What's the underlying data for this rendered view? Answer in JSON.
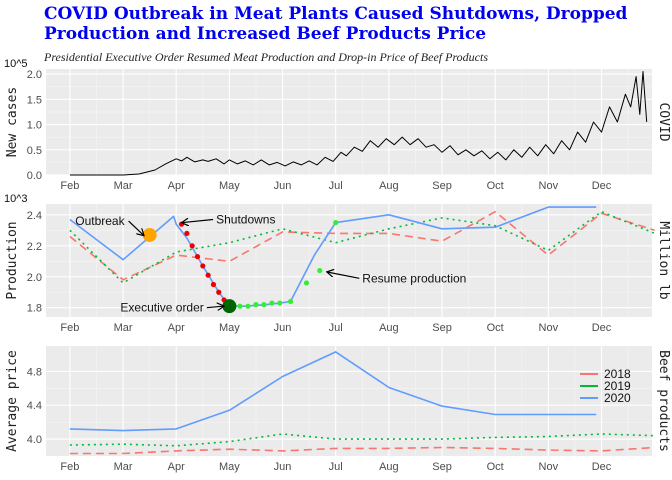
{
  "title": "COVID Outbreak in Meat Plants Caused Shutdowns, Dropped Production and Increased Beef Products Price",
  "subtitle": "Presidential Executive Order Resumed Meat Production and Drop-in Price of Beef Products",
  "chart_data": [
    {
      "type": "line",
      "ylabel": "New cases",
      "right_label": "COVID",
      "y_scale_label": "10^5",
      "ylim": [
        0,
        2.1
      ],
      "yticks": [
        0,
        0.5,
        1.0,
        1.5,
        2.0
      ],
      "ytick_labels": [
        "0.0",
        "0.5",
        "1.0",
        "1.5",
        "2.0"
      ],
      "xlim": [
        0.55,
        11.95
      ],
      "xticks": [
        1,
        2,
        3,
        4,
        5,
        6,
        7,
        8,
        9,
        10,
        11,
        12
      ],
      "xtick_labels": [
        "Feb",
        "Mar",
        "Apr",
        "May",
        "Jun",
        "Jul",
        "Aug",
        "Sep",
        "Oct",
        "Nov",
        "Dec"
      ],
      "grid": true,
      "series": [
        {
          "color": "#000000",
          "x": [
            1.0,
            1.5,
            2.0,
            2.3,
            2.6,
            2.8,
            3.0,
            3.1,
            3.2,
            3.35,
            3.5,
            3.6,
            3.75,
            3.9,
            4.0,
            4.15,
            4.3,
            4.45,
            4.6,
            4.75,
            4.9,
            5.05,
            5.2,
            5.35,
            5.5,
            5.65,
            5.8,
            5.95,
            6.1,
            6.2,
            6.35,
            6.5,
            6.65,
            6.8,
            6.95,
            7.1,
            7.25,
            7.4,
            7.55,
            7.7,
            7.85,
            8.0,
            8.15,
            8.3,
            8.45,
            8.6,
            8.75,
            8.9,
            9.05,
            9.2,
            9.35,
            9.5,
            9.65,
            9.8,
            9.95,
            10.1,
            10.25,
            10.4,
            10.55,
            10.7,
            10.85,
            11.0,
            11.15,
            11.3,
            11.45,
            11.55,
            11.65,
            11.72,
            11.78,
            11.85
          ],
          "y": [
            0.0,
            0.0,
            0.0,
            0.02,
            0.1,
            0.22,
            0.32,
            0.28,
            0.35,
            0.26,
            0.3,
            0.27,
            0.32,
            0.22,
            0.3,
            0.22,
            0.28,
            0.2,
            0.3,
            0.2,
            0.25,
            0.18,
            0.26,
            0.2,
            0.28,
            0.2,
            0.35,
            0.27,
            0.45,
            0.38,
            0.55,
            0.47,
            0.68,
            0.55,
            0.72,
            0.6,
            0.75,
            0.6,
            0.72,
            0.55,
            0.6,
            0.45,
            0.58,
            0.4,
            0.5,
            0.38,
            0.48,
            0.32,
            0.45,
            0.3,
            0.5,
            0.35,
            0.55,
            0.38,
            0.6,
            0.42,
            0.68,
            0.5,
            0.85,
            0.65,
            1.05,
            0.85,
            1.35,
            1.05,
            1.6,
            1.35,
            1.95,
            1.2,
            2.05,
            1.05
          ]
        }
      ]
    },
    {
      "type": "line",
      "ylabel": "Production",
      "right_label": "Million lb",
      "y_scale_label": "10^3",
      "ylim": [
        1.74,
        2.47
      ],
      "yticks": [
        1.8,
        2.0,
        2.2,
        2.4
      ],
      "ytick_labels": [
        "1.8",
        "2.0",
        "2.2",
        "2.4"
      ],
      "xlim": [
        0.55,
        11.95
      ],
      "xticks": [
        1,
        2,
        3,
        4,
        5,
        6,
        7,
        8,
        9,
        10,
        11,
        12
      ],
      "xtick_labels": [
        "Feb",
        "Mar",
        "Apr",
        "May",
        "Jun",
        "Jul",
        "Aug",
        "Sep",
        "Oct",
        "Nov",
        "Dec"
      ],
      "grid": true,
      "series": [
        {
          "name": "2018",
          "color": "#f8766d",
          "dash": "8,5",
          "x": [
            1,
            2,
            3,
            4,
            5,
            6,
            7,
            8,
            9,
            10,
            11,
            12
          ],
          "y": [
            2.26,
            1.98,
            2.14,
            2.1,
            2.29,
            2.28,
            2.28,
            2.23,
            2.42,
            2.14,
            2.41,
            2.3
          ]
        },
        {
          "name": "2019",
          "color": "#00ba38",
          "dash": "2,4",
          "x": [
            1,
            2,
            3,
            4,
            5,
            6,
            7,
            8,
            9,
            10,
            11,
            12
          ],
          "y": [
            2.3,
            1.96,
            2.16,
            2.22,
            2.31,
            2.22,
            2.31,
            2.38,
            2.33,
            2.17,
            2.42,
            2.28
          ]
        },
        {
          "name": "2020",
          "color": "#619cff",
          "x": [
            1,
            2,
            2.95,
            3.0,
            3.2,
            3.5,
            3.8,
            4.0,
            4.3,
            4.7,
            4.95,
            5.15,
            5.6,
            6.0,
            7.0,
            8.0,
            9.0,
            10.0,
            10.9
          ],
          "y": [
            2.37,
            2.11,
            2.39,
            2.34,
            2.25,
            2.07,
            1.9,
            1.81,
            1.81,
            1.82,
            1.83,
            1.84,
            2.14,
            2.35,
            2.4,
            2.31,
            2.32,
            2.45,
            2.45
          ]
        }
      ],
      "highlight_red": {
        "color": "#ee0000",
        "x": [
          3.1,
          3.2,
          3.3,
          3.4,
          3.5,
          3.6,
          3.7,
          3.8,
          3.9,
          4.0
        ],
        "y": [
          2.34,
          2.28,
          2.2,
          2.13,
          2.07,
          2.01,
          1.95,
          1.9,
          1.85,
          1.81
        ]
      },
      "highlight_green": {
        "color": "#33ee33",
        "x": [
          4.05,
          4.2,
          4.35,
          4.5,
          4.65,
          4.8,
          4.95,
          5.15,
          5.45,
          5.7,
          6.0
        ],
        "y": [
          1.81,
          1.81,
          1.81,
          1.82,
          1.82,
          1.83,
          1.83,
          1.84,
          1.96,
          2.04,
          2.35
        ]
      },
      "markers": [
        {
          "x": 2.5,
          "y": 2.27,
          "color": "#ffa500",
          "r": 7
        },
        {
          "x": 4.0,
          "y": 1.81,
          "color": "#006400",
          "r": 7
        }
      ],
      "annotations": [
        {
          "text": "Outbreak",
          "x": 1.1,
          "y": 2.36,
          "to_x": 2.38,
          "to_y": 2.27
        },
        {
          "text": "Shutdowns",
          "x": 3.75,
          "y": 2.37,
          "to_x": 3.12,
          "to_y": 2.35
        },
        {
          "text": "Executive order",
          "x": 1.95,
          "y": 1.8,
          "to_x": 3.88,
          "to_y": 1.81
        },
        {
          "text": "Resume production",
          "x": 6.5,
          "y": 1.99,
          "to_x": 5.85,
          "to_y": 2.03
        }
      ]
    },
    {
      "type": "line",
      "ylabel": "Average price",
      "right_label": "Beef products",
      "ylim": [
        3.8,
        5.1
      ],
      "yticks": [
        4.0,
        4.4,
        4.8
      ],
      "ytick_labels": [
        "4.0",
        "4.4",
        "4.8"
      ],
      "xlim": [
        0.55,
        11.95
      ],
      "xticks": [
        1,
        2,
        3,
        4,
        5,
        6,
        7,
        8,
        9,
        10,
        11,
        12
      ],
      "xtick_labels": [
        "Feb",
        "Mar",
        "Apr",
        "May",
        "Jun",
        "Jul",
        "Aug",
        "Sep",
        "Oct",
        "Nov",
        "Dec"
      ],
      "grid": true,
      "legend": "right",
      "series": [
        {
          "name": "2018",
          "color": "#f8766d",
          "dash": "8,5",
          "x": [
            1,
            2,
            3,
            4,
            5,
            6,
            7,
            8,
            9,
            10,
            11,
            12
          ],
          "y": [
            3.83,
            3.83,
            3.86,
            3.88,
            3.86,
            3.89,
            3.89,
            3.9,
            3.89,
            3.87,
            3.86,
            3.9
          ]
        },
        {
          "name": "2019",
          "color": "#00ba38",
          "dash": "2,4",
          "x": [
            1,
            2,
            3,
            4,
            5,
            6,
            7,
            8,
            9,
            10,
            11,
            12
          ],
          "y": [
            3.93,
            3.94,
            3.92,
            3.97,
            4.06,
            4.0,
            4.0,
            4.0,
            4.02,
            4.03,
            4.06,
            4.04
          ]
        },
        {
          "name": "2020",
          "color": "#619cff",
          "x": [
            1,
            2,
            3,
            4,
            5,
            6,
            7,
            8,
            9,
            10,
            10.9
          ],
          "y": [
            4.12,
            4.1,
            4.12,
            4.34,
            4.74,
            5.03,
            4.61,
            4.39,
            4.29,
            4.29,
            4.29
          ]
        }
      ]
    }
  ]
}
